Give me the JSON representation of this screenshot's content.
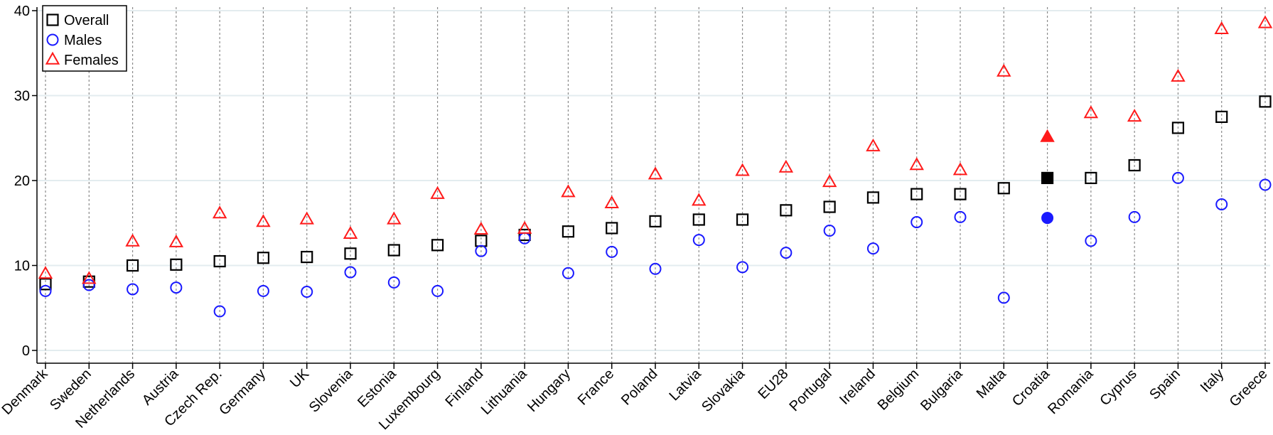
{
  "chart_data": {
    "type": "scatter",
    "categories": [
      "Denmark",
      "Sweden",
      "Netherlands",
      "Austria",
      "Czech Rep.",
      "Germany",
      "UK",
      "Slovenia",
      "Estonia",
      "Luxembourg",
      "Finland",
      "Lithuania",
      "Hungary",
      "France",
      "Poland",
      "Latvia",
      "Slovakia",
      "EU28",
      "Portugal",
      "Ireland",
      "Belgium",
      "Bulgaria",
      "Malta",
      "Croatia",
      "Romania",
      "Cyprus",
      "Spain",
      "Italy",
      "Greece"
    ],
    "ylim": [
      0,
      40
    ],
    "yticks": [
      "0",
      "10",
      "20",
      "30",
      "40"
    ],
    "highlight_category": "Croatia",
    "grid": true,
    "legend_position": "top-left",
    "series": [
      {
        "name": "Overall",
        "marker": "square",
        "color": "#000000",
        "values": [
          7.8,
          8.1,
          10.0,
          10.1,
          10.5,
          10.9,
          11.0,
          11.4,
          11.8,
          12.4,
          12.9,
          13.6,
          14.0,
          14.4,
          15.2,
          15.4,
          15.4,
          16.5,
          16.9,
          18.0,
          18.4,
          18.4,
          19.1,
          20.3,
          20.3,
          21.8,
          26.2,
          27.5,
          29.3
        ]
      },
      {
        "name": "Males",
        "marker": "circle",
        "color": "#1a1aff",
        "values": [
          7.0,
          7.7,
          7.2,
          7.4,
          4.6,
          7.0,
          6.9,
          9.2,
          8.0,
          7.0,
          11.7,
          13.2,
          9.1,
          11.6,
          9.6,
          13.0,
          9.8,
          11.5,
          14.1,
          12.0,
          15.1,
          15.7,
          6.2,
          15.6,
          12.9,
          15.7,
          20.3,
          17.2,
          19.5
        ]
      },
      {
        "name": "Females",
        "marker": "triangle",
        "color": "#ff1a1a",
        "values": [
          9.0,
          8.4,
          12.8,
          12.7,
          16.1,
          15.1,
          15.4,
          13.7,
          15.4,
          18.4,
          14.2,
          14.3,
          18.6,
          17.3,
          20.7,
          17.6,
          21.1,
          21.5,
          19.8,
          24.0,
          21.8,
          21.2,
          32.8,
          25.1,
          27.9,
          27.5,
          32.2,
          37.8,
          38.5
        ]
      }
    ]
  }
}
